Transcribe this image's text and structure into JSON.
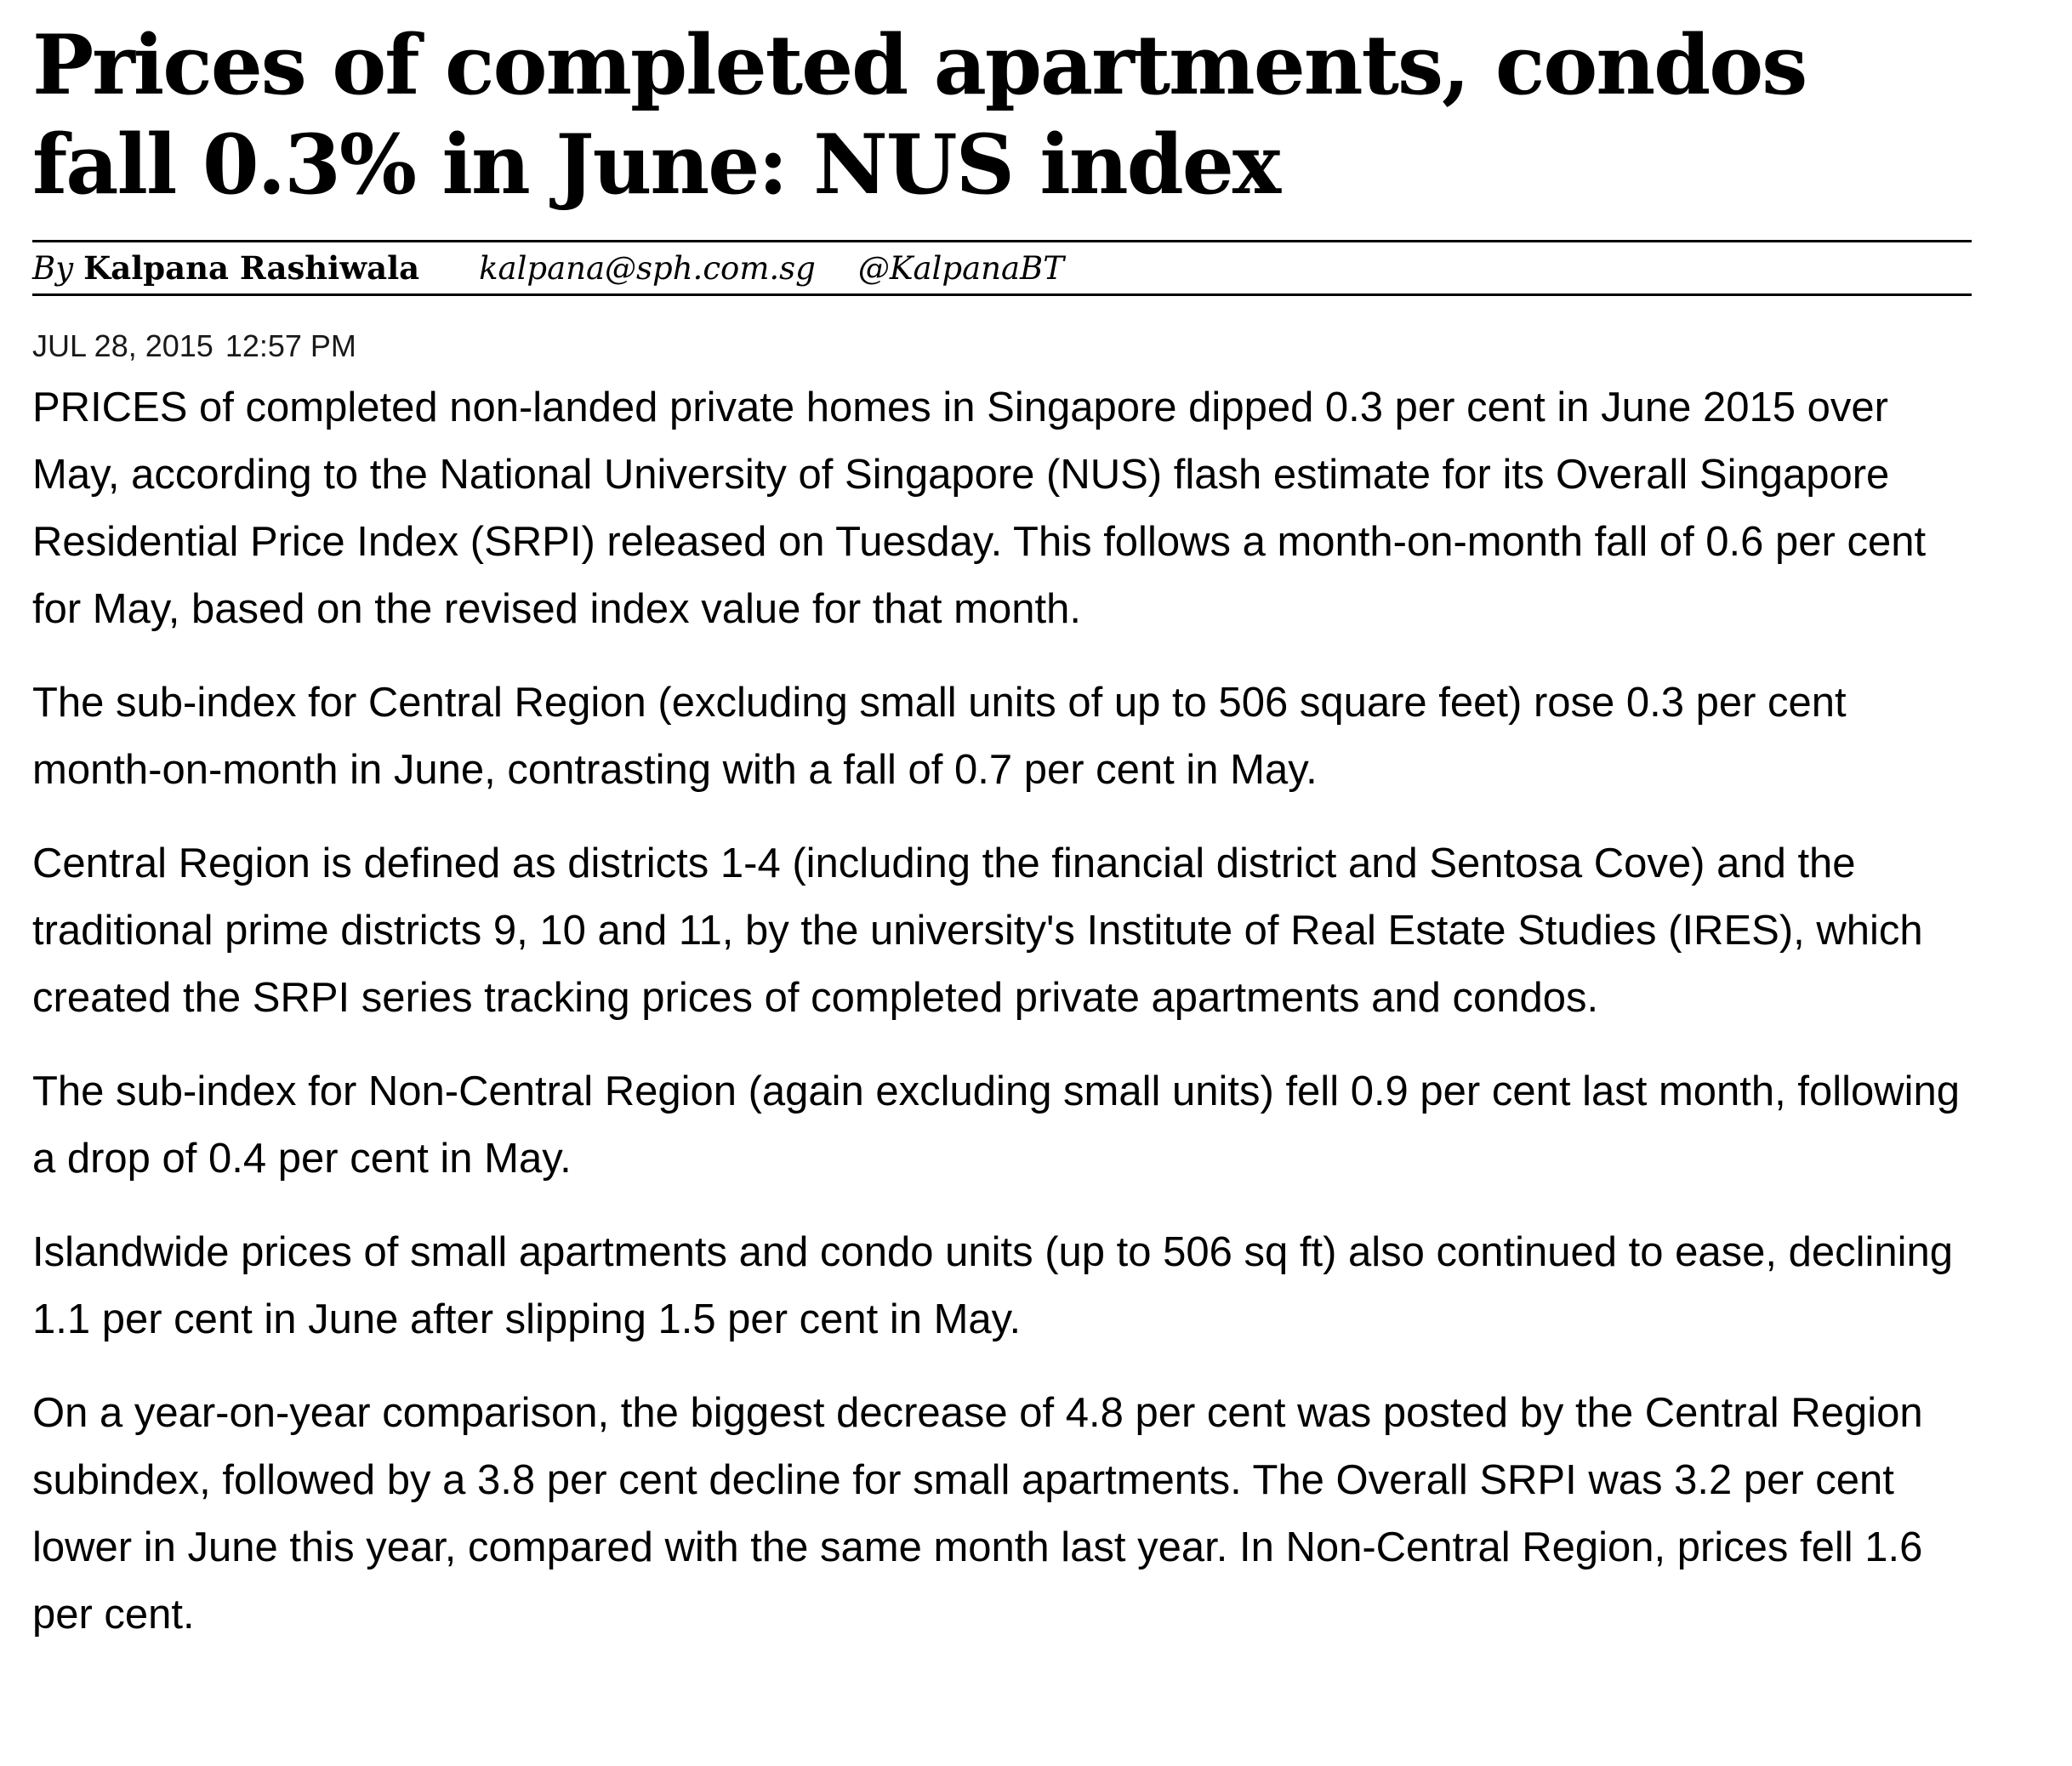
{
  "article": {
    "headline": "Prices of completed apartments, condos fall 0.3% in June: NUS index",
    "byline": {
      "prefix": "By",
      "author": "Kalpana Rashiwala",
      "email": "kalpana@sph.com.sg",
      "handle": "@KalpanaBT"
    },
    "date": "JUL 28, 2015",
    "time": "12:57 PM",
    "paragraphs": [
      "PRICES of completed non-landed private homes in Singapore dipped 0.3 per cent in June 2015 over May, according to the National University of Singapore (NUS) flash estimate for its Overall Singapore Residential Price Index (SRPI) released on Tuesday. This follows a month-on-month fall of 0.6 per cent for May, based on the revised index value for that month.",
      "The sub-index for Central Region (excluding small units of up to 506 square feet) rose 0.3 per cent month-on-month in June, contrasting with a fall of 0.7 per cent in May.",
      "Central Region is defined as districts 1-4 (including the financial district and Sentosa Cove) and the traditional prime districts 9, 10 and 11, by the university's Institute of Real Estate Studies (IRES), which created the SRPI series tracking prices of completed private apartments and condos.",
      "The sub-index for Non-Central Region (again excluding small units) fell 0.9 per cent last month, following a drop of 0.4 per cent in May.",
      "Islandwide prices of small apartments and condo units (up to 506 sq ft) also continued to ease, declining 1.1 per cent in June after slipping 1.5 per cent in May.",
      "On a year-on-year comparison, the biggest decrease of 4.8 per cent was posted by the Central Region subindex, followed by a 3.8 per cent decline for small apartments. The Overall SRPI was 3.2 per cent lower in June this year, compared with the same month last year. In Non-Central Region, prices fell 1.6 per cent."
    ]
  }
}
